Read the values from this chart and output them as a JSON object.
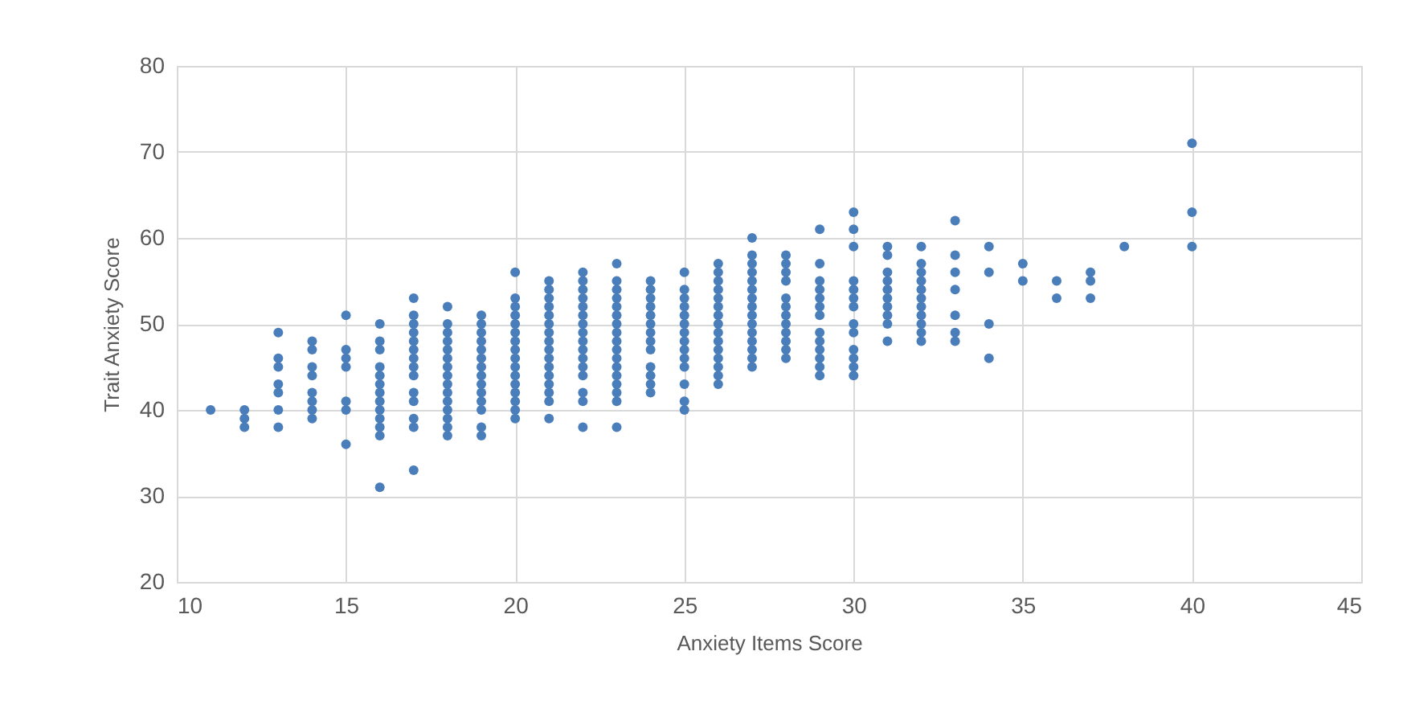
{
  "chart_data": {
    "type": "scatter",
    "xlabel": "Anxiety Items Score",
    "ylabel": "Trait Anxiety Score",
    "xlim": [
      10,
      45
    ],
    "xticks": [
      10,
      15,
      20,
      25,
      30,
      35,
      40,
      45
    ],
    "ylim": [
      20,
      80
    ],
    "yticks": [
      20,
      30,
      40,
      50,
      60,
      70,
      80
    ],
    "grid": true,
    "marker": "circle",
    "series": [
      {
        "color": "#4a7ebb",
        "x": [
          11,
          12,
          12,
          12,
          13,
          13,
          13,
          13,
          13,
          13,
          13,
          14,
          14,
          14,
          14,
          14,
          14,
          14,
          14,
          15,
          15,
          15,
          15,
          15,
          15,
          15,
          16,
          16,
          16,
          16,
          16,
          16,
          16,
          16,
          16,
          16,
          16,
          16,
          16,
          17,
          17,
          17,
          17,
          17,
          17,
          17,
          17,
          17,
          17,
          17,
          17,
          17,
          17,
          18,
          18,
          18,
          18,
          18,
          18,
          18,
          18,
          18,
          18,
          18,
          18,
          18,
          18,
          18,
          19,
          19,
          19,
          19,
          19,
          19,
          19,
          19,
          19,
          19,
          19,
          19,
          19,
          19,
          20,
          20,
          20,
          20,
          20,
          20,
          20,
          20,
          20,
          20,
          20,
          20,
          20,
          20,
          20,
          20,
          21,
          21,
          21,
          21,
          21,
          21,
          21,
          21,
          21,
          21,
          21,
          21,
          21,
          21,
          21,
          21,
          22,
          22,
          22,
          22,
          22,
          22,
          22,
          22,
          22,
          22,
          22,
          22,
          22,
          22,
          22,
          22,
          23,
          23,
          23,
          23,
          23,
          23,
          23,
          23,
          23,
          23,
          23,
          23,
          23,
          23,
          23,
          23,
          23,
          24,
          24,
          24,
          24,
          24,
          24,
          24,
          24,
          24,
          24,
          24,
          24,
          24,
          25,
          25,
          25,
          25,
          25,
          25,
          25,
          25,
          25,
          25,
          25,
          25,
          25,
          25,
          26,
          26,
          26,
          26,
          26,
          26,
          26,
          26,
          26,
          26,
          26,
          26,
          26,
          26,
          26,
          27,
          27,
          27,
          27,
          27,
          27,
          27,
          27,
          27,
          27,
          27,
          27,
          27,
          27,
          27,
          28,
          28,
          28,
          28,
          28,
          28,
          28,
          28,
          28,
          28,
          28,
          28,
          29,
          29,
          29,
          29,
          29,
          29,
          29,
          29,
          29,
          29,
          29,
          29,
          29,
          30,
          30,
          30,
          30,
          30,
          30,
          30,
          30,
          30,
          30,
          30,
          30,
          30,
          31,
          31,
          31,
          31,
          31,
          31,
          31,
          31,
          31,
          31,
          32,
          32,
          32,
          32,
          32,
          32,
          32,
          32,
          32,
          32,
          32,
          33,
          33,
          33,
          33,
          33,
          33,
          33,
          34,
          34,
          34,
          34,
          35,
          35,
          36,
          36,
          37,
          37,
          37,
          38,
          40,
          40,
          40
        ],
        "values": [
          40,
          38,
          39,
          40,
          38,
          40,
          42,
          43,
          45,
          46,
          49,
          39,
          40,
          41,
          42,
          44,
          45,
          47,
          48,
          36,
          40,
          41,
          45,
          46,
          47,
          51,
          31,
          37,
          38,
          39,
          40,
          41,
          42,
          43,
          44,
          45,
          47,
          48,
          50,
          33,
          38,
          39,
          41,
          42,
          44,
          45,
          46,
          47,
          48,
          49,
          50,
          51,
          53,
          37,
          38,
          39,
          40,
          41,
          42,
          43,
          44,
          45,
          46,
          47,
          48,
          49,
          50,
          52,
          37,
          38,
          40,
          41,
          42,
          43,
          44,
          45,
          46,
          47,
          48,
          49,
          50,
          51,
          39,
          40,
          41,
          42,
          43,
          44,
          45,
          46,
          47,
          48,
          49,
          50,
          51,
          52,
          53,
          56,
          39,
          41,
          42,
          43,
          44,
          45,
          46,
          47,
          48,
          49,
          50,
          51,
          52,
          53,
          54,
          55,
          38,
          41,
          42,
          44,
          45,
          46,
          47,
          48,
          49,
          50,
          51,
          52,
          53,
          54,
          55,
          56,
          38,
          41,
          42,
          43,
          44,
          45,
          46,
          47,
          48,
          49,
          50,
          51,
          52,
          53,
          54,
          55,
          57,
          42,
          43,
          44,
          45,
          47,
          48,
          49,
          50,
          51,
          52,
          53,
          54,
          55,
          40,
          41,
          43,
          45,
          46,
          47,
          48,
          49,
          50,
          51,
          52,
          53,
          54,
          56,
          43,
          44,
          45,
          46,
          47,
          48,
          49,
          50,
          51,
          52,
          53,
          54,
          55,
          56,
          57,
          45,
          46,
          47,
          48,
          49,
          50,
          51,
          52,
          53,
          54,
          55,
          56,
          57,
          58,
          60,
          46,
          47,
          48,
          49,
          50,
          51,
          52,
          53,
          55,
          56,
          57,
          58,
          44,
          45,
          46,
          47,
          48,
          49,
          51,
          52,
          53,
          54,
          55,
          57,
          61,
          44,
          45,
          46,
          47,
          49,
          50,
          52,
          53,
          54,
          55,
          59,
          61,
          63,
          48,
          50,
          51,
          52,
          53,
          54,
          55,
          56,
          58,
          59,
          48,
          49,
          50,
          51,
          52,
          53,
          54,
          55,
          56,
          57,
          59,
          48,
          49,
          51,
          54,
          56,
          58,
          62,
          46,
          50,
          56,
          59,
          55,
          57,
          53,
          55,
          53,
          55,
          56,
          59,
          59,
          63,
          71
        ]
      }
    ]
  }
}
